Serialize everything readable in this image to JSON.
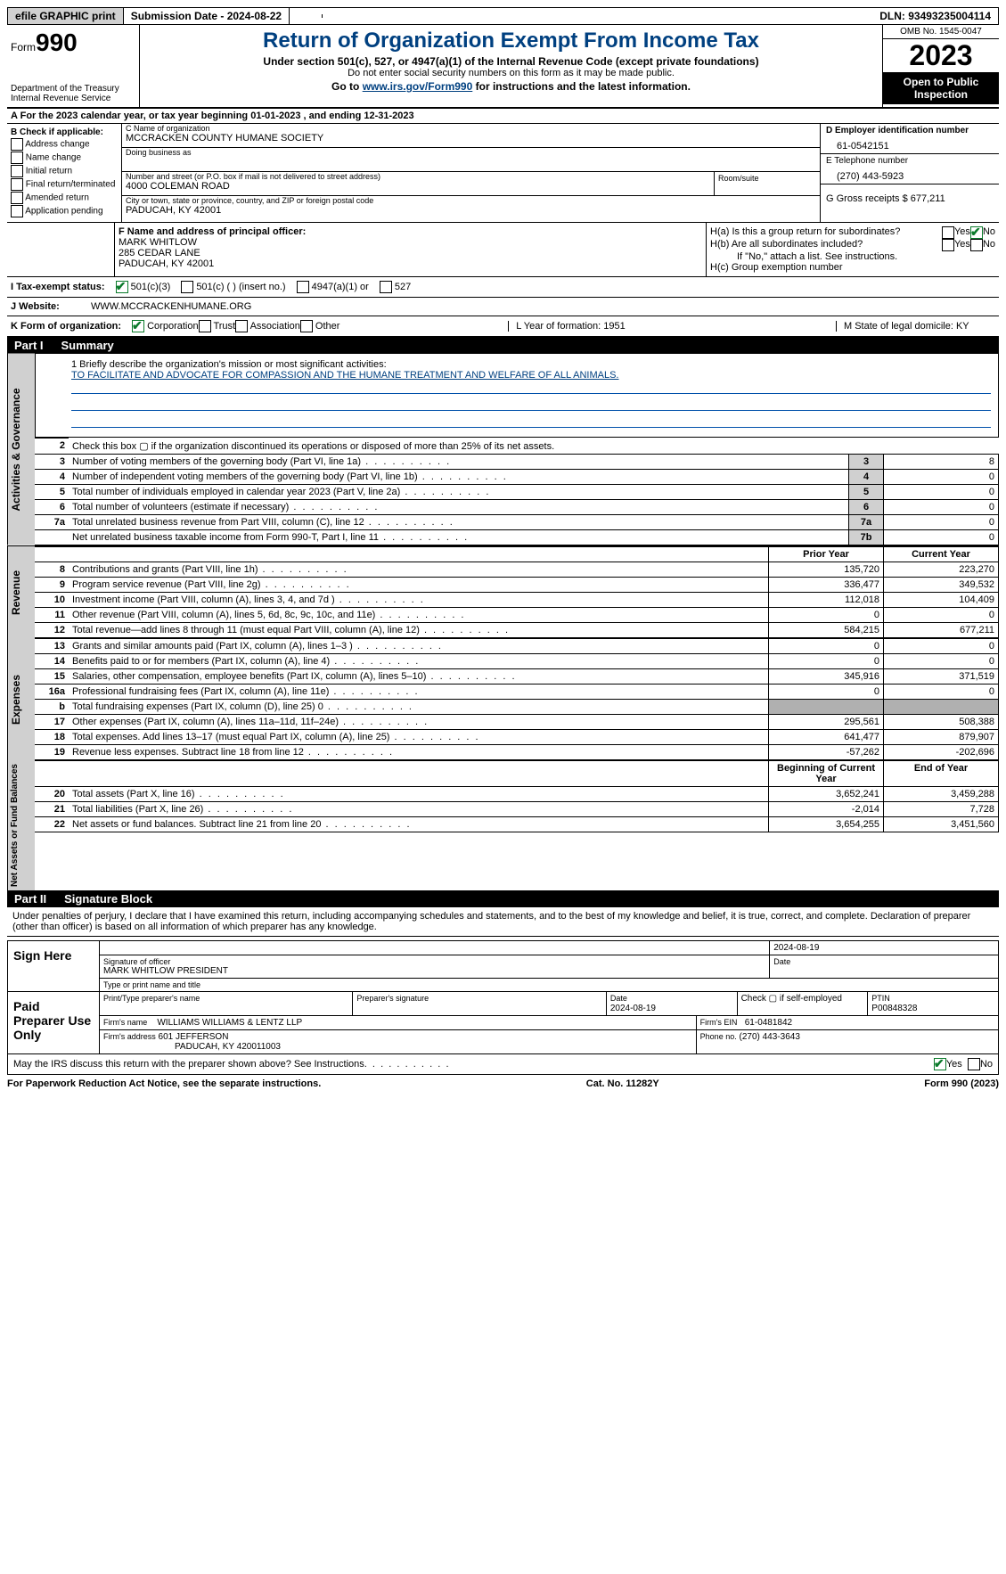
{
  "topbar": {
    "efile": "efile GRAPHIC print",
    "submission_label": "Submission Date - 2024-08-22",
    "dln_label": "DLN: 93493235004114"
  },
  "header": {
    "form_prefix": "Form",
    "form_number": "990",
    "dept": "Department of the Treasury\nInternal Revenue Service",
    "title": "Return of Organization Exempt From Income Tax",
    "sub1": "Under section 501(c), 527, or 4947(a)(1) of the Internal Revenue Code (except private foundations)",
    "sub2": "Do not enter social security numbers on this form as it may be made public.",
    "sub3_pre": "Go to ",
    "sub3_link": "www.irs.gov/Form990",
    "sub3_post": " for instructions and the latest information.",
    "omb": "OMB No. 1545-0047",
    "year": "2023",
    "public": "Open to Public Inspection"
  },
  "line_A": "For the 2023 calendar year, or tax year beginning 01-01-2023   , and ending 12-31-2023",
  "box_B": {
    "title": "B Check if applicable:",
    "opts": [
      "Address change",
      "Name change",
      "Initial return",
      "Final return/terminated",
      "Amended return",
      "Application pending"
    ]
  },
  "box_C": {
    "name_label": "C Name of organization",
    "name": "MCCRACKEN COUNTY HUMANE SOCIETY",
    "dba_label": "Doing business as",
    "addr_label": "Number and street (or P.O. box if mail is not delivered to street address)",
    "addr": "4000 COLEMAN ROAD",
    "room_label": "Room/suite",
    "city_label": "City or town, state or province, country, and ZIP or foreign postal code",
    "city": "PADUCAH, KY   42001"
  },
  "box_D": {
    "ein_label": "D Employer identification number",
    "ein": "61-0542151",
    "phone_label": "E Telephone number",
    "phone": "(270) 443-5923",
    "receipts_label": "G Gross receipts $ 677,211"
  },
  "box_F": {
    "label": "F  Name and address of principal officer:",
    "name": "MARK WHITLOW",
    "addr1": "285 CEDAR LANE",
    "addr2": "PADUCAH, KY  42001"
  },
  "box_H": {
    "a": "H(a)  Is this a group return for subordinates?",
    "b": "H(b)  Are all subordinates included?",
    "note": "If \"No,\" attach a list. See instructions.",
    "c": "H(c)  Group exemption number"
  },
  "row_I": {
    "label": "I    Tax-exempt status:",
    "o1": "501(c)(3)",
    "o2": "501(c) (  ) (insert no.)",
    "o3": "4947(a)(1) or",
    "o4": "527"
  },
  "row_J": {
    "label": "J    Website:",
    "val": "WWW.MCCRACKENHUMANE.ORG"
  },
  "row_K": {
    "label": "K Form of organization:",
    "o1": "Corporation",
    "o2": "Trust",
    "o3": "Association",
    "o4": "Other",
    "l": "L Year of formation: 1951",
    "m": "M State of legal domicile: KY"
  },
  "part1": {
    "num": "Part I",
    "title": "Summary"
  },
  "mission": {
    "q": "1   Briefly describe the organization's mission or most significant activities:",
    "text": "TO FACILITATE AND ADVOCATE FOR COMPASSION AND THE HUMANE TREATMENT AND WELFARE OF ALL ANIMALS."
  },
  "gov_lines": [
    {
      "n": "2",
      "desc": "Check this box ▢ if the organization discontinued its operations or disposed of more than 25% of its net assets.",
      "k": "",
      "v": ""
    },
    {
      "n": "3",
      "desc": "Number of voting members of the governing body (Part VI, line 1a)",
      "k": "3",
      "v": "8"
    },
    {
      "n": "4",
      "desc": "Number of independent voting members of the governing body (Part VI, line 1b)",
      "k": "4",
      "v": "0"
    },
    {
      "n": "5",
      "desc": "Total number of individuals employed in calendar year 2023 (Part V, line 2a)",
      "k": "5",
      "v": "0"
    },
    {
      "n": "6",
      "desc": "Total number of volunteers (estimate if necessary)",
      "k": "6",
      "v": "0"
    },
    {
      "n": "7a",
      "desc": "Total unrelated business revenue from Part VIII, column (C), line 12",
      "k": "7a",
      "v": "0"
    },
    {
      "n": "",
      "desc": "Net unrelated business taxable income from Form 990-T, Part I, line 11",
      "k": "7b",
      "v": "0"
    }
  ],
  "col_headers": {
    "prior": "Prior Year",
    "current": "Current Year",
    "begin": "Beginning of Current Year",
    "end": "End of Year"
  },
  "rev_lines": [
    {
      "n": "8",
      "desc": "Contributions and grants (Part VIII, line 1h)",
      "p": "135,720",
      "c": "223,270"
    },
    {
      "n": "9",
      "desc": "Program service revenue (Part VIII, line 2g)",
      "p": "336,477",
      "c": "349,532"
    },
    {
      "n": "10",
      "desc": "Investment income (Part VIII, column (A), lines 3, 4, and 7d )",
      "p": "112,018",
      "c": "104,409"
    },
    {
      "n": "11",
      "desc": "Other revenue (Part VIII, column (A), lines 5, 6d, 8c, 9c, 10c, and 11e)",
      "p": "0",
      "c": "0"
    },
    {
      "n": "12",
      "desc": "Total revenue—add lines 8 through 11 (must equal Part VIII, column (A), line 12)",
      "p": "584,215",
      "c": "677,211"
    }
  ],
  "exp_lines": [
    {
      "n": "13",
      "desc": "Grants and similar amounts paid (Part IX, column (A), lines 1–3 )",
      "p": "0",
      "c": "0"
    },
    {
      "n": "14",
      "desc": "Benefits paid to or for members (Part IX, column (A), line 4)",
      "p": "0",
      "c": "0"
    },
    {
      "n": "15",
      "desc": "Salaries, other compensation, employee benefits (Part IX, column (A), lines 5–10)",
      "p": "345,916",
      "c": "371,519"
    },
    {
      "n": "16a",
      "desc": "Professional fundraising fees (Part IX, column (A), line 11e)",
      "p": "0",
      "c": "0"
    },
    {
      "n": "b",
      "desc": "Total fundraising expenses (Part IX, column (D), line 25) 0",
      "p": "SHADE",
      "c": "SHADE"
    },
    {
      "n": "17",
      "desc": "Other expenses (Part IX, column (A), lines 11a–11d, 11f–24e)",
      "p": "295,561",
      "c": "508,388"
    },
    {
      "n": "18",
      "desc": "Total expenses. Add lines 13–17 (must equal Part IX, column (A), line 25)",
      "p": "641,477",
      "c": "879,907"
    },
    {
      "n": "19",
      "desc": "Revenue less expenses. Subtract line 18 from line 12",
      "p": "-57,262",
      "c": "-202,696"
    }
  ],
  "net_lines": [
    {
      "n": "20",
      "desc": "Total assets (Part X, line 16)",
      "p": "3,652,241",
      "c": "3,459,288"
    },
    {
      "n": "21",
      "desc": "Total liabilities (Part X, line 26)",
      "p": "-2,014",
      "c": "7,728"
    },
    {
      "n": "22",
      "desc": "Net assets or fund balances. Subtract line 21 from line 20",
      "p": "3,654,255",
      "c": "3,451,560"
    }
  ],
  "part2": {
    "num": "Part II",
    "title": "Signature Block"
  },
  "sig": {
    "perjury": "Under penalties of perjury, I declare that I have examined this return, including accompanying schedules and statements, and to the best of my knowledge and belief, it is true, correct, and complete. Declaration of preparer (other than officer) is based on all information of which preparer has any knowledge.",
    "sign_here": "Sign Here",
    "date1": "2024-08-19",
    "officer_sig_lbl": "Signature of officer",
    "officer": "MARK WHITLOW PRESIDENT",
    "type_lbl": "Type or print name and title",
    "date_lbl": "Date",
    "paid": "Paid Preparer Use Only",
    "prep_name_lbl": "Print/Type preparer's name",
    "prep_sig_lbl": "Preparer's signature",
    "prep_date": "2024-08-19",
    "self_emp": "Check ▢ if self-employed",
    "ptin_lbl": "PTIN",
    "ptin": "P00848328",
    "firm_name_lbl": "Firm's name",
    "firm_name": "WILLIAMS WILLIAMS & LENTZ LLP",
    "firm_ein_lbl": "Firm's EIN",
    "firm_ein": "61-0481842",
    "firm_addr_lbl": "Firm's address",
    "firm_addr1": "601 JEFFERSON",
    "firm_addr2": "PADUCAH, KY  420011003",
    "firm_phone_lbl": "Phone no.",
    "firm_phone": "(270) 443-3643",
    "discuss": "May the IRS discuss this return with the preparer shown above? See Instructions."
  },
  "footer": {
    "left": "For Paperwork Reduction Act Notice, see the separate instructions.",
    "center": "Cat. No. 11282Y",
    "right": "Form 990 (2023)"
  },
  "tabs": {
    "gov": "Activities & Governance",
    "rev": "Revenue",
    "exp": "Expenses",
    "net": "Net Assets or Fund Balances"
  },
  "yes": "Yes",
  "no": "No"
}
